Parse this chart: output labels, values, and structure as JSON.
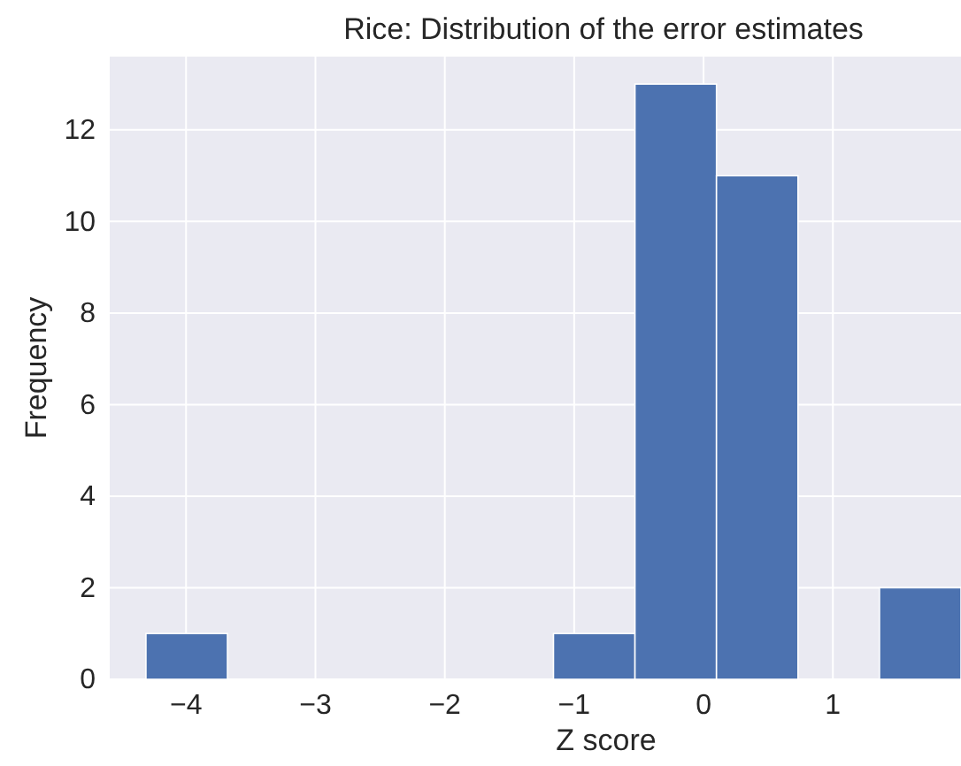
{
  "chart_data": {
    "type": "histogram",
    "title": "Rice: Distribution of the error estimates",
    "xlabel": "Z score",
    "ylabel": "Frequency",
    "bins": [
      -4.31,
      -3.68,
      -3.05,
      -2.42,
      -1.79,
      -1.16,
      -0.53,
      0.1,
      0.73,
      1.36,
      1.99
    ],
    "values": [
      1,
      0,
      0,
      0,
      0,
      1,
      13,
      11,
      0,
      2
    ],
    "color": "#4c72b0",
    "xlim": [
      -4.59,
      1.99
    ],
    "xticks": [
      {
        "value": -4,
        "label": "−4"
      },
      {
        "value": -3,
        "label": "−3"
      },
      {
        "value": -2,
        "label": "−2"
      },
      {
        "value": -1,
        "label": "−1"
      },
      0,
      1
    ],
    "ylim": [
      0,
      13.6
    ],
    "yticks": [
      0,
      2,
      4,
      6,
      8,
      10,
      12
    ],
    "grid": true
  }
}
